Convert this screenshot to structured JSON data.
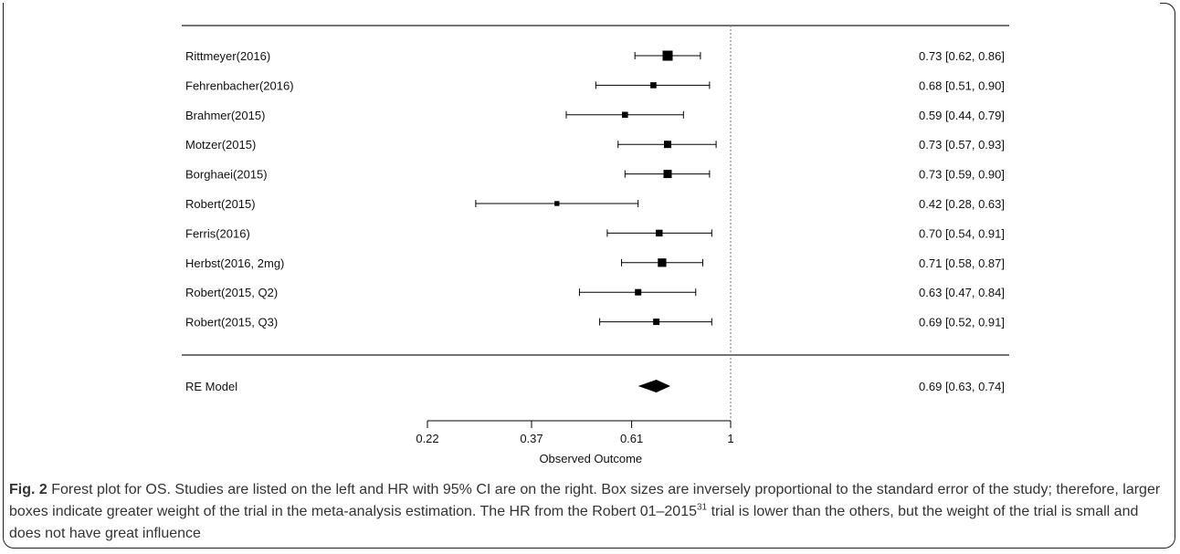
{
  "chart_data": {
    "type": "forest",
    "xlabel": "Observed Outcome",
    "x_scale": "log",
    "xlim": [
      0.22,
      1.0
    ],
    "x_ticks": [
      {
        "value": 0.22,
        "label": "0.22"
      },
      {
        "value": 0.37,
        "label": "0.37"
      },
      {
        "value": 0.61,
        "label": "0.61"
      },
      {
        "value": 1.0,
        "label": "1"
      }
    ],
    "reference_line": 1.0,
    "studies": [
      {
        "name": "Rittmeyer(2016)",
        "estimate": 0.73,
        "lower": 0.62,
        "upper": 0.86,
        "ci_text": "0.73 [0.62, 0.86]",
        "weight": 1.0
      },
      {
        "name": "Fehrenbacher(2016)",
        "estimate": 0.68,
        "lower": 0.51,
        "upper": 0.9,
        "ci_text": "0.68 [0.51, 0.90]",
        "weight": 0.45
      },
      {
        "name": "Brahmer(2015)",
        "estimate": 0.59,
        "lower": 0.44,
        "upper": 0.79,
        "ci_text": "0.59 [0.44, 0.79]",
        "weight": 0.45
      },
      {
        "name": "Motzer(2015)",
        "estimate": 0.73,
        "lower": 0.57,
        "upper": 0.93,
        "ci_text": "0.73 [0.57, 0.93]",
        "weight": 0.62
      },
      {
        "name": "Borghaei(2015)",
        "estimate": 0.73,
        "lower": 0.59,
        "upper": 0.9,
        "ci_text": "0.73 [0.59, 0.90]",
        "weight": 0.75
      },
      {
        "name": "Robert(2015)",
        "estimate": 0.42,
        "lower": 0.28,
        "upper": 0.63,
        "ci_text": "0.42 [0.28, 0.63]",
        "weight": 0.3
      },
      {
        "name": "Ferris(2016)",
        "estimate": 0.7,
        "lower": 0.54,
        "upper": 0.91,
        "ci_text": "0.70 [0.54, 0.91]",
        "weight": 0.55
      },
      {
        "name": "Herbst(2016, 2mg)",
        "estimate": 0.71,
        "lower": 0.58,
        "upper": 0.87,
        "ci_text": "0.71 [0.58, 0.87]",
        "weight": 0.78
      },
      {
        "name": "Robert(2015, Q2)",
        "estimate": 0.63,
        "lower": 0.47,
        "upper": 0.84,
        "ci_text": "0.63 [0.47, 0.84]",
        "weight": 0.5
      },
      {
        "name": "Robert(2015, Q3)",
        "estimate": 0.69,
        "lower": 0.52,
        "upper": 0.91,
        "ci_text": "0.69 [0.52, 0.91]",
        "weight": 0.5
      }
    ],
    "summary": {
      "name": "RE Model",
      "estimate": 0.69,
      "lower": 0.63,
      "upper": 0.74,
      "ci_text": "0.69 [0.63, 0.74]"
    },
    "colors": {
      "ink": "#000000",
      "rule": "#444444",
      "reference": "#777777"
    }
  },
  "caption": {
    "label": "Fig. 2",
    "text_before_ref": "Forest plot for OS. Studies are listed on the left and HR with 95% CI are on the right. Box sizes are inversely proportional to the standard error of the study; therefore, larger boxes indicate greater weight of the trial in the meta-analysis estimation. The HR from the Robert 01–2015",
    "ref": "31",
    "text_after_ref": "trial is lower than the others, but the weight of the trial is small and does not have great influence"
  }
}
